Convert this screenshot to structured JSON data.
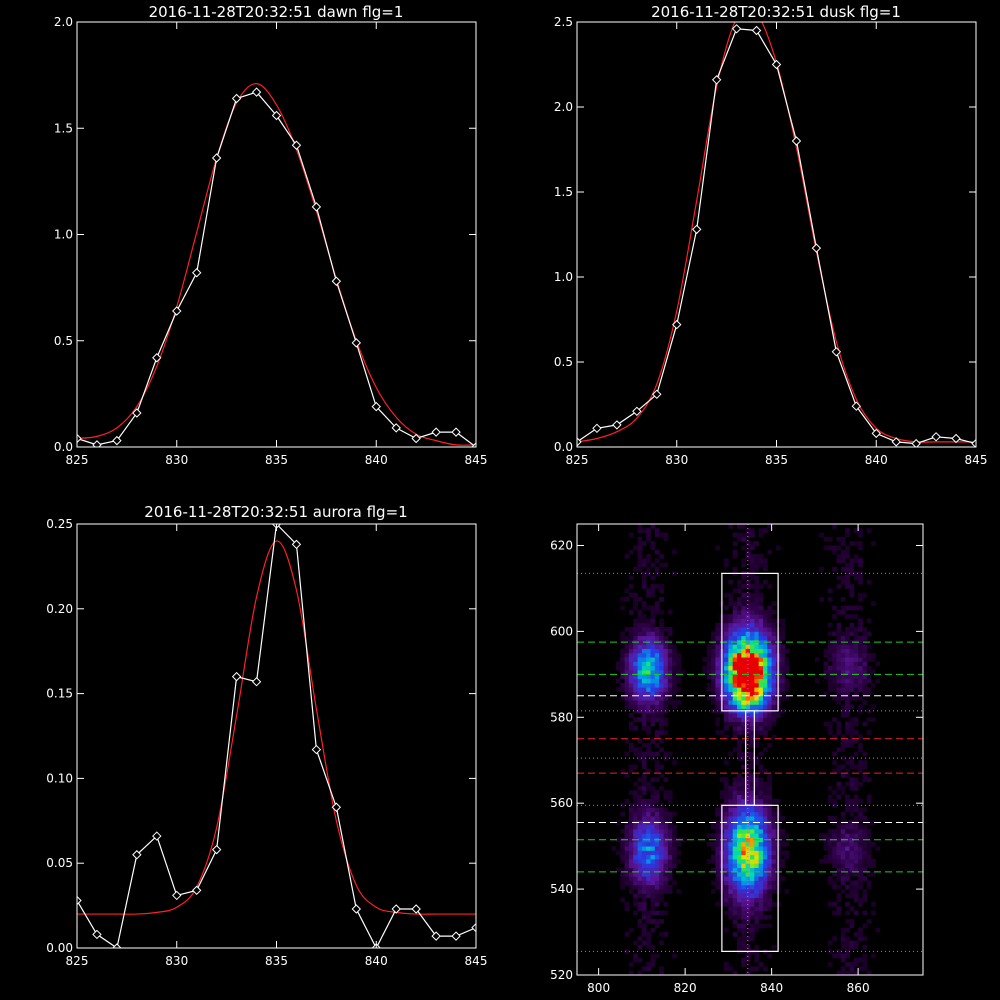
{
  "chart_data": [
    {
      "type": "line",
      "title": "2016-11-28T20:32:51 dawn flg=1",
      "xlim": [
        825,
        845
      ],
      "ylim": [
        0,
        2.0
      ],
      "xticks": [
        825,
        830,
        835,
        840,
        845
      ],
      "xtick_labels": [
        "825",
        "830",
        "835",
        "840",
        "845"
      ],
      "yticks": [
        0,
        0.5,
        1.0,
        1.5,
        2.0
      ],
      "ytick_labels": [
        "0.0",
        "0.5",
        "1.0",
        "1.5",
        "2.0"
      ],
      "series": [
        {
          "color": "#ffffff",
          "marker": "diamond",
          "x": [
            825,
            826,
            827,
            828,
            829,
            830,
            831,
            832,
            833,
            834,
            835,
            836,
            837,
            838,
            839,
            840,
            841,
            842,
            843,
            844,
            845
          ],
          "y": [
            0.04,
            0.01,
            0.03,
            0.16,
            0.42,
            0.64,
            0.82,
            1.36,
            1.64,
            1.67,
            1.56,
            1.42,
            1.13,
            0.78,
            0.49,
            0.19,
            0.09,
            0.04,
            0.07,
            0.07,
            0.0
          ]
        },
        {
          "color": "#ff2020",
          "marker": "none",
          "x": [
            825,
            826,
            827,
            828,
            829,
            830,
            831,
            832,
            833,
            834,
            835,
            836,
            837,
            838,
            839,
            840,
            841,
            842,
            843,
            844,
            845
          ],
          "y": [
            0.04,
            0.05,
            0.09,
            0.19,
            0.38,
            0.66,
            1.01,
            1.36,
            1.62,
            1.71,
            1.61,
            1.4,
            1.11,
            0.79,
            0.5,
            0.28,
            0.14,
            0.06,
            0.03,
            0.01,
            0.01
          ]
        }
      ]
    },
    {
      "type": "line",
      "title": "2016-11-28T20:32:51 dusk flg=1",
      "xlim": [
        825,
        845
      ],
      "ylim": [
        0,
        2.5
      ],
      "xticks": [
        825,
        830,
        835,
        840,
        845
      ],
      "xtick_labels": [
        "825",
        "830",
        "835",
        "840",
        "845"
      ],
      "yticks": [
        0,
        0.5,
        1.0,
        1.5,
        2.0,
        2.5
      ],
      "ytick_labels": [
        "0.0",
        "0.5",
        "1.0",
        "1.5",
        "2.0",
        "2.5"
      ],
      "series": [
        {
          "color": "#ffffff",
          "marker": "diamond",
          "x": [
            825,
            826,
            827,
            828,
            829,
            830,
            831,
            832,
            833,
            834,
            835,
            836,
            837,
            838,
            839,
            840,
            841,
            842,
            843,
            844,
            845
          ],
          "y": [
            0.03,
            0.11,
            0.13,
            0.21,
            0.31,
            0.72,
            1.28,
            2.16,
            2.46,
            2.45,
            2.25,
            1.8,
            1.17,
            0.56,
            0.24,
            0.08,
            0.03,
            0.02,
            0.06,
            0.05,
            0.02
          ]
        },
        {
          "color": "#ff2020",
          "marker": "none",
          "x": [
            825,
            826,
            827,
            828,
            829,
            830,
            831,
            832,
            833,
            834,
            835,
            836,
            837,
            838,
            839,
            840,
            841,
            842,
            843,
            844,
            845
          ],
          "y": [
            0.03,
            0.05,
            0.09,
            0.17,
            0.37,
            0.8,
            1.45,
            2.12,
            2.52,
            2.55,
            2.26,
            1.76,
            1.15,
            0.62,
            0.28,
            0.11,
            0.05,
            0.03,
            0.03,
            0.03,
            0.03
          ]
        }
      ]
    },
    {
      "type": "line",
      "title": "2016-11-28T20:32:51 aurora flg=1",
      "xlim": [
        825,
        845
      ],
      "ylim": [
        0,
        0.25
      ],
      "xticks": [
        825,
        830,
        835,
        840,
        845
      ],
      "xtick_labels": [
        "825",
        "830",
        "835",
        "840",
        "845"
      ],
      "yticks": [
        0,
        0.05,
        0.1,
        0.15,
        0.2,
        0.25
      ],
      "ytick_labels": [
        "0.00",
        "0.05",
        "0.10",
        "0.15",
        "0.20",
        "0.25"
      ],
      "series": [
        {
          "color": "#ffffff",
          "marker": "diamond",
          "x": [
            825,
            826,
            827,
            828,
            829,
            830,
            831,
            832,
            833,
            834,
            835,
            836,
            837,
            838,
            839,
            840,
            841,
            842,
            843,
            844,
            845
          ],
          "y": [
            0.028,
            0.008,
            0.0,
            0.055,
            0.066,
            0.031,
            0.034,
            0.058,
            0.16,
            0.157,
            0.25,
            0.238,
            0.117,
            0.083,
            0.023,
            0.0,
            0.023,
            0.023,
            0.007,
            0.007,
            0.012
          ]
        },
        {
          "color": "#ff2020",
          "marker": "none",
          "x": [
            825,
            826,
            827,
            828,
            829,
            830,
            831,
            832,
            833,
            834,
            835,
            836,
            837,
            838,
            839,
            840,
            841,
            842,
            843,
            844,
            845
          ],
          "y": [
            0.02,
            0.02,
            0.02,
            0.02,
            0.021,
            0.024,
            0.036,
            0.071,
            0.137,
            0.207,
            0.24,
            0.211,
            0.141,
            0.075,
            0.037,
            0.024,
            0.021,
            0.02,
            0.02,
            0.02,
            0.02
          ]
        }
      ]
    },
    {
      "type": "heatmap",
      "title": "",
      "xlim": [
        795,
        875
      ],
      "ylim": [
        520,
        625
      ],
      "xticks": [
        800,
        820,
        840,
        860
      ],
      "xtick_labels": [
        "800",
        "820",
        "840",
        "860"
      ],
      "yticks": [
        520,
        540,
        560,
        580,
        600,
        620
      ],
      "ytick_labels": [
        "520",
        "540",
        "560",
        "580",
        "600",
        "620"
      ],
      "blobs": [
        {
          "x": 834.5,
          "y": 592,
          "sx": 3.5,
          "sy": 5.5,
          "amp": 1.0
        },
        {
          "x": 834.5,
          "y": 587,
          "sx": 3.0,
          "sy": 4.0,
          "amp": 0.55
        },
        {
          "x": 834.5,
          "y": 549,
          "sx": 3.2,
          "sy": 6.5,
          "amp": 0.8
        },
        {
          "x": 811.5,
          "y": 591,
          "sx": 2.8,
          "sy": 4.5,
          "amp": 0.55
        },
        {
          "x": 811.5,
          "y": 549,
          "sx": 2.8,
          "sy": 5.0,
          "amp": 0.4
        },
        {
          "x": 858.0,
          "y": 592,
          "sx": 3.0,
          "sy": 4.0,
          "amp": 0.12
        },
        {
          "x": 858.0,
          "y": 549,
          "sx": 3.0,
          "sy": 4.0,
          "amp": 0.1
        }
      ],
      "boxes": [
        {
          "x0": 828.5,
          "x1": 841.5,
          "y0": 581.5,
          "y1": 613.5,
          "color": "#ffffff"
        },
        {
          "x0": 828.5,
          "x1": 841.5,
          "y0": 525.5,
          "y1": 559.5,
          "color": "#ffffff"
        }
      ],
      "connector": {
        "x0": 834.0,
        "x1": 836.0,
        "y0": 559.5,
        "y1": 581.5,
        "color": "#ffffff"
      },
      "hlines": [
        {
          "y": 613.5,
          "color": "#ff44ff",
          "style": "dotted"
        },
        {
          "y": 597.5,
          "color": "#22cc22",
          "style": "dashed"
        },
        {
          "y": 590.0,
          "color": "#22cc22",
          "style": "dashed"
        },
        {
          "y": 585.0,
          "color": "#ffffff",
          "style": "dashed"
        },
        {
          "y": 581.5,
          "color": "#ff44ff",
          "style": "dotted"
        },
        {
          "y": 575.0,
          "color": "#ee2222",
          "style": "dashed"
        },
        {
          "y": 570.5,
          "color": "#ff44ff",
          "style": "dotted"
        },
        {
          "y": 567.0,
          "color": "#ee2222",
          "style": "dashed"
        },
        {
          "y": 559.5,
          "color": "#ff44ff",
          "style": "dotted"
        },
        {
          "y": 555.5,
          "color": "#ffffff",
          "style": "dashed"
        },
        {
          "y": 551.5,
          "color": "#22cc22",
          "style": "dashed"
        },
        {
          "y": 544.0,
          "color": "#22cc22",
          "style": "dashed"
        },
        {
          "y": 525.5,
          "color": "#ff44ff",
          "style": "dotted"
        }
      ],
      "vline": {
        "x": 834.5,
        "color": "#ff44ff",
        "style": "dotted"
      }
    }
  ]
}
